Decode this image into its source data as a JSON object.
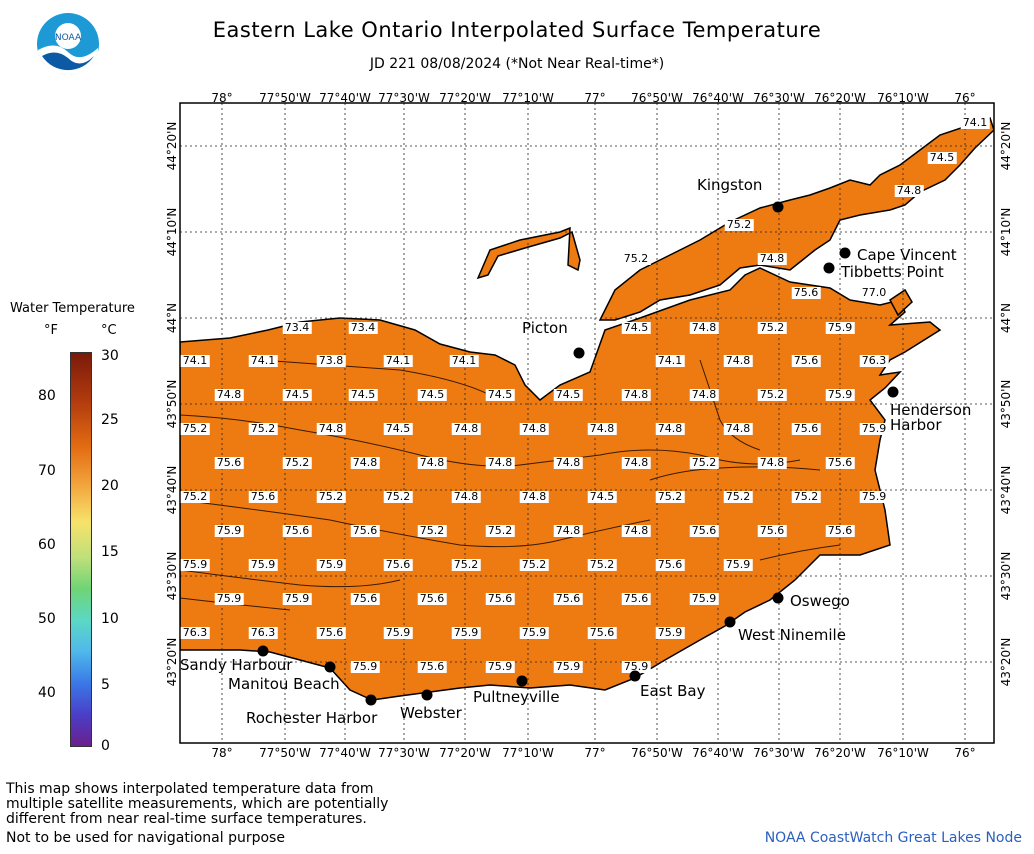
{
  "title": "Eastern Lake Ontario Interpolated Surface Temperature",
  "subtitle": "JD 221 08/08/2024 (*Not Near Real-time*)",
  "logo_text": "NOAA",
  "lon_ticks": [
    "78°",
    "77°50'W",
    "77°40'W",
    "77°30'W",
    "77°20'W",
    "77°10'W",
    "77°",
    "76°50'W",
    "76°40'W",
    "76°30'W",
    "76°20'W",
    "76°10'W",
    "76°"
  ],
  "lat_ticks": [
    "44°20'N",
    "44°10'N",
    "44°N",
    "43°50'N",
    "43°40'N",
    "43°30'N",
    "43°20'N"
  ],
  "legend": {
    "title": "Water Temperature",
    "unit_f": "°F",
    "unit_c": "°C",
    "f_ticks": [
      "80",
      "70",
      "60",
      "50",
      "40"
    ],
    "c_ticks": [
      "30",
      "25",
      "20",
      "15",
      "10",
      "5",
      "0"
    ]
  },
  "water_color": "#ee7a12",
  "place_names": {
    "kingston": "Kingston",
    "cape_vincent": "Cape Vincent",
    "tibbetts_point": "Tibbetts Point",
    "picton": "Picton",
    "henderson_harbor_1": "Henderson",
    "henderson_harbor_2": "Harbor",
    "oswego": "Oswego",
    "west_ninemile": "West Ninemile",
    "east_bay": "East Bay",
    "pultneyville": "Pultneyville",
    "webster": "Webster",
    "rochester_harbor": "Rochester Harbor",
    "manitou_beach": "Manitou Beach",
    "sandy_harbour": "Sandy Harbour"
  },
  "temperatures": [
    "74.1",
    "74.5",
    "74.8",
    "75.2",
    "74.8",
    "75.2",
    "75.6",
    "77.0",
    "73.4",
    "73.4",
    "74.5",
    "74.8",
    "75.2",
    "75.9",
    "74.1",
    "74.1",
    "73.8",
    "74.1",
    "74.1",
    "74.1",
    "74.8",
    "75.6",
    "76.3",
    "74.8",
    "74.5",
    "74.5",
    "74.5",
    "74.5",
    "74.5",
    "74.8",
    "74.8",
    "75.2",
    "75.9",
    "75.2",
    "75.2",
    "74.8",
    "74.5",
    "74.8",
    "74.8",
    "74.8",
    "74.8",
    "74.8",
    "75.6",
    "75.9",
    "75.6",
    "75.2",
    "74.8",
    "74.8",
    "74.8",
    "74.8",
    "74.8",
    "75.2",
    "74.8",
    "75.6",
    "75.2",
    "75.6",
    "75.2",
    "75.2",
    "74.8",
    "74.8",
    "74.5",
    "75.2",
    "75.2",
    "75.2",
    "75.9",
    "75.9",
    "75.6",
    "75.6",
    "75.2",
    "75.2",
    "74.8",
    "74.8",
    "75.6",
    "75.6",
    "75.6",
    "75.9",
    "75.9",
    "75.9",
    "75.6",
    "75.2",
    "75.2",
    "75.2",
    "75.6",
    "75.9",
    "75.9",
    "75.9",
    "75.6",
    "75.6",
    "75.6",
    "75.6",
    "75.6",
    "75.9",
    "76.3",
    "76.3",
    "75.6",
    "75.9",
    "75.9",
    "75.9",
    "75.6",
    "75.9",
    "75.9",
    "75.6",
    "75.9",
    "75.9",
    "75.9"
  ],
  "disclaimer": {
    "line1": "This map shows interpolated temperature data from",
    "line2": "multiple satellite measurements, which are potentially",
    "line3": "different from near real-time surface temperatures.",
    "nav": "Not to be used for navigational purpose"
  },
  "credit": "NOAA CoastWatch Great Lakes Node"
}
